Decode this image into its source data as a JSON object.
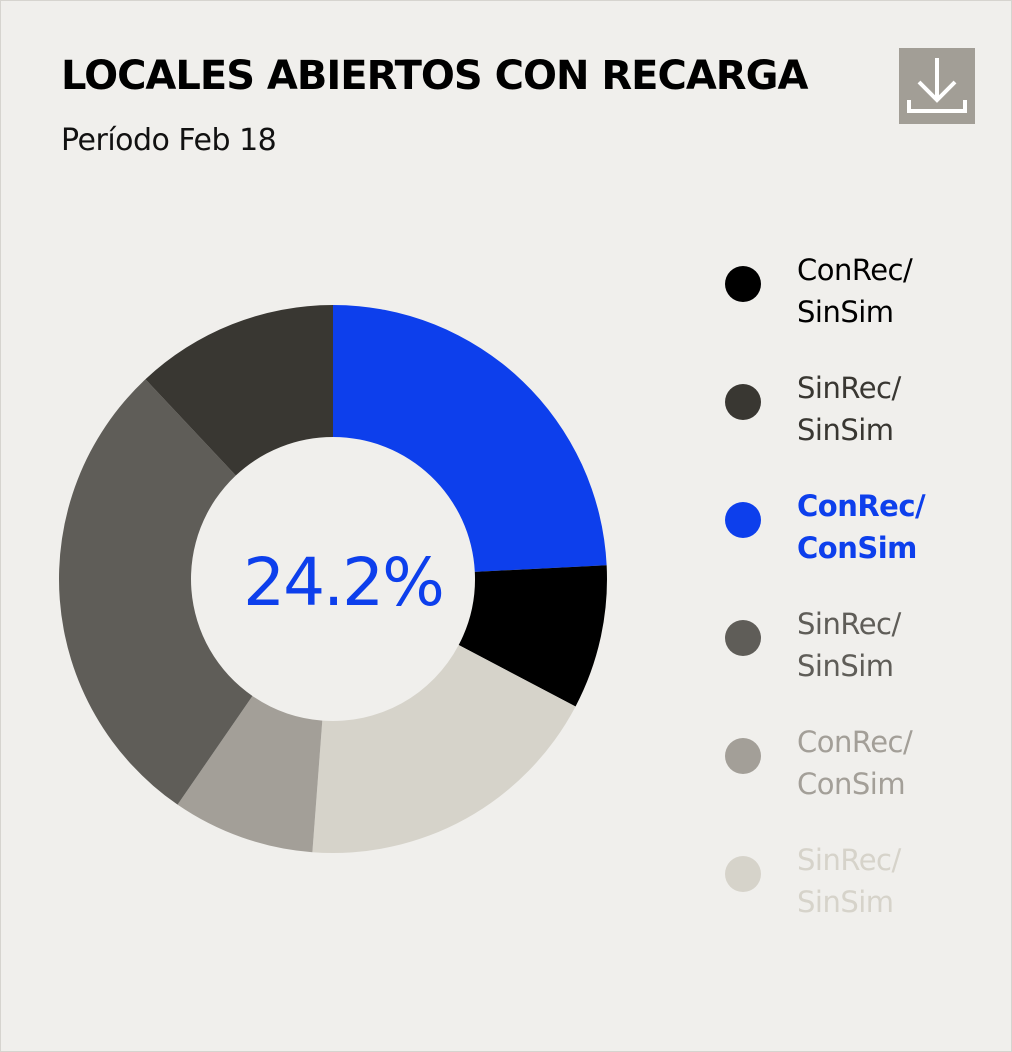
{
  "header": {
    "title": "LOCALES ABIERTOS CON RECARGA",
    "subtitle": "Período Feb 18"
  },
  "toolbar": {
    "download_icon": "download-icon"
  },
  "colors": {
    "background": "#f0efec",
    "accent": "#0d3fec",
    "button": "#a29e96"
  },
  "chart_data": {
    "type": "pie",
    "variant": "donut",
    "center_label": "24.2%",
    "highlighted_index": 2,
    "legend_position": "right",
    "slices": [
      {
        "label_line1": "ConRec/",
        "label_line2": "SinSim",
        "value": 8.5,
        "color": "#000000",
        "text_color": "#000000"
      },
      {
        "label_line1": "SinRec/",
        "label_line2": "SinSim",
        "value": 12.0,
        "color": "#393732",
        "text_color": "#393732"
      },
      {
        "label_line1": "ConRec/",
        "label_line2": "ConSim",
        "value": 24.2,
        "color": "#0d3fec",
        "text_color": "#0d3fec"
      },
      {
        "label_line1": "SinRec/",
        "label_line2": "SinSim",
        "value": 28.4,
        "color": "#5f5d58",
        "text_color": "#5f5d58"
      },
      {
        "label_line1": "ConRec/",
        "label_line2": "ConSim",
        "value": 8.4,
        "color": "#a39f98",
        "text_color": "#a39f98"
      },
      {
        "label_line1": "SinRec/",
        "label_line2": "SinSim",
        "value": 18.5,
        "color": "#d6d3ca",
        "text_color": "#d6d3ca"
      }
    ],
    "draw_order": [
      2,
      0,
      5,
      4,
      3,
      1
    ]
  }
}
